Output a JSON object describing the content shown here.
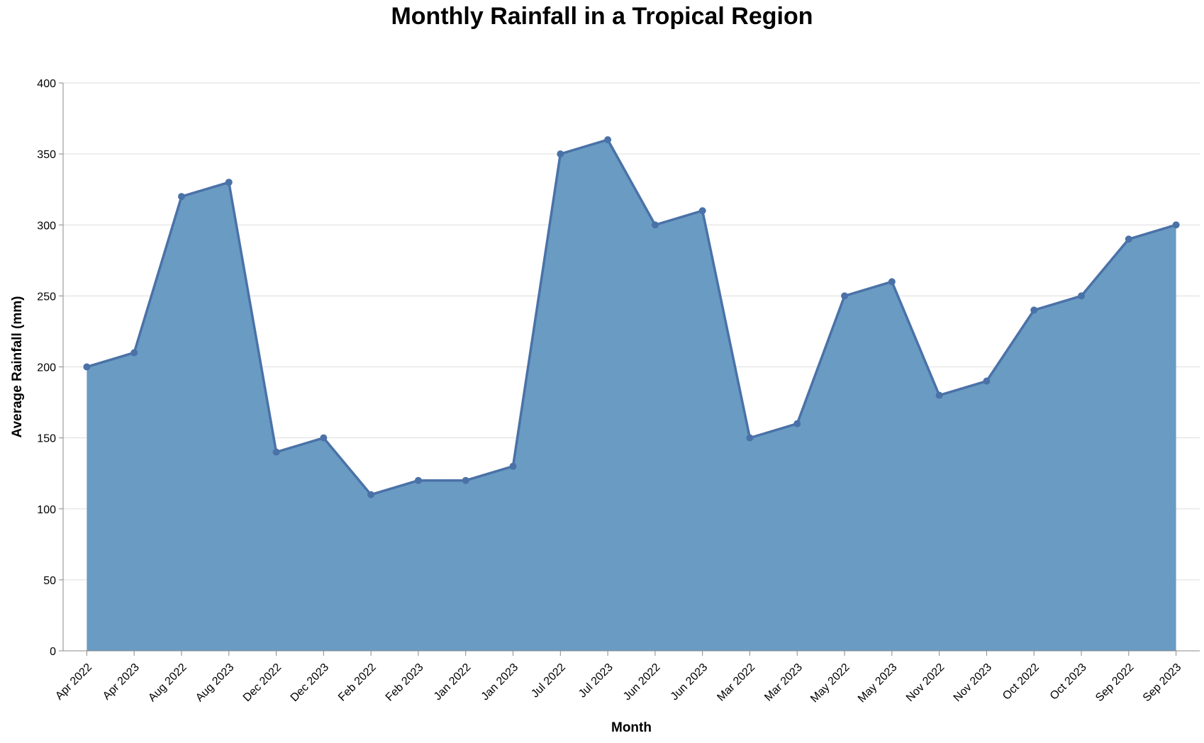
{
  "chart_data": {
    "type": "area",
    "title": "Monthly Rainfall in a Tropical Region",
    "xlabel": "Month",
    "ylabel": "Average Rainfall (mm)",
    "ylim": [
      0,
      400
    ],
    "yticks": [
      0,
      50,
      100,
      150,
      200,
      250,
      300,
      350,
      400
    ],
    "grid": true,
    "categories": [
      "Apr 2022",
      "Apr 2023",
      "Aug 2022",
      "Aug 2023",
      "Dec 2022",
      "Dec 2023",
      "Feb 2022",
      "Feb 2023",
      "Jan 2022",
      "Jan 2023",
      "Jul 2022",
      "Jul 2023",
      "Jun 2022",
      "Jun 2023",
      "Mar 2022",
      "Mar 2023",
      "May 2022",
      "May 2023",
      "Nov 2022",
      "Nov 2023",
      "Oct 2022",
      "Oct 2023",
      "Sep 2022",
      "Sep 2023"
    ],
    "values": [
      200,
      210,
      320,
      330,
      140,
      150,
      110,
      120,
      120,
      130,
      350,
      360,
      300,
      310,
      150,
      160,
      250,
      260,
      180,
      190,
      240,
      250,
      290,
      300
    ],
    "colors": {
      "fill": "#6a9bc3",
      "line": "#4a72a8",
      "point": "#4a72a8",
      "grid": "#dddddd",
      "axis": "#888888"
    }
  }
}
